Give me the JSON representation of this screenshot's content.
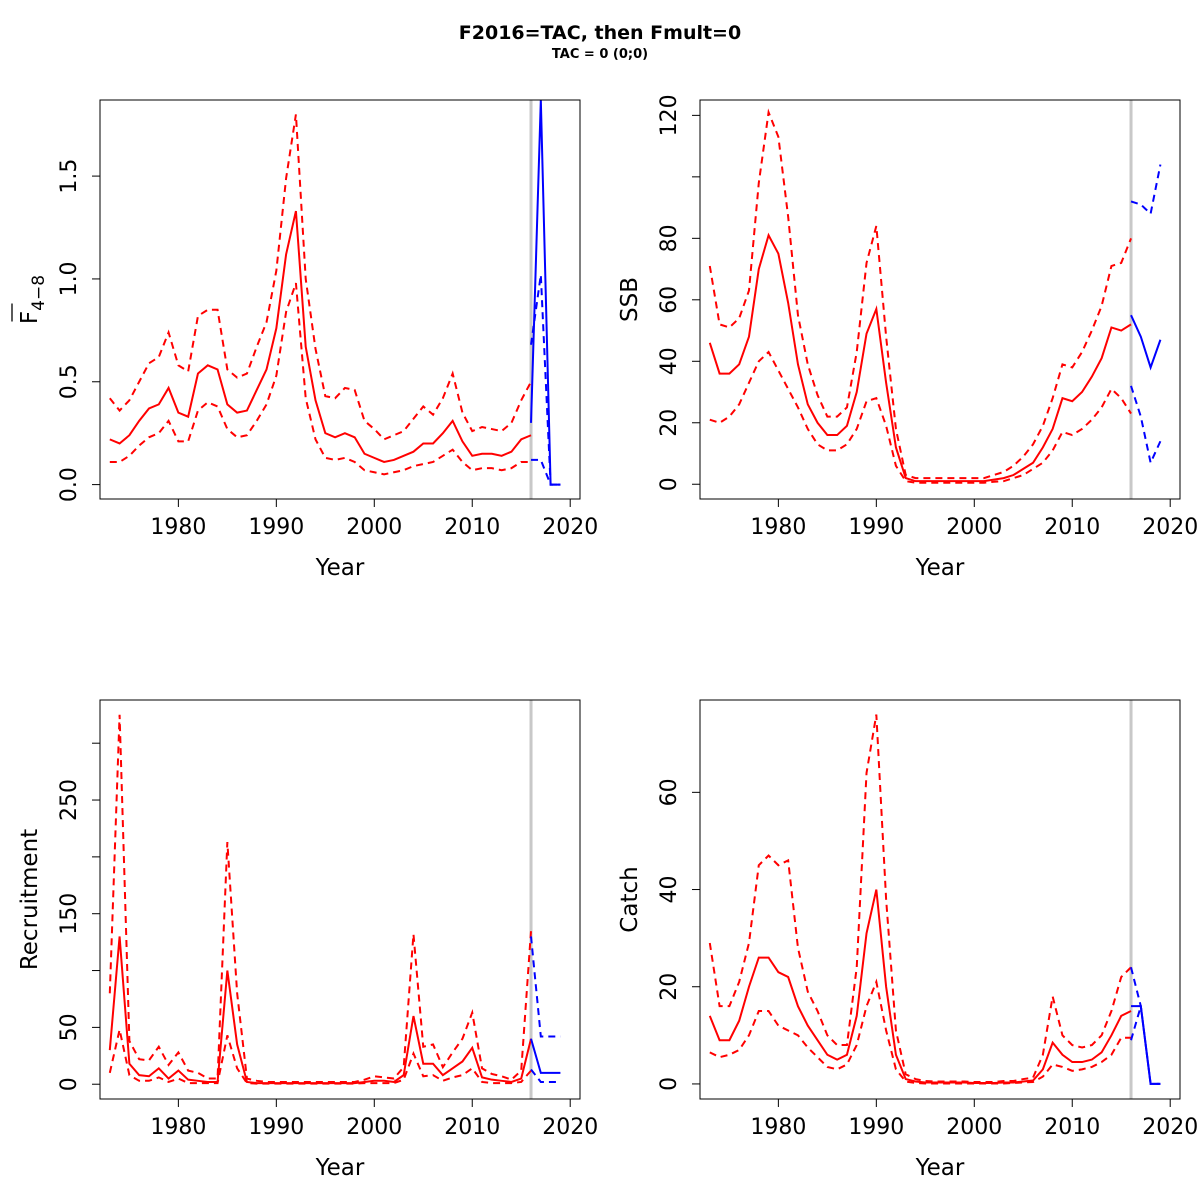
{
  "title": "F2016=TAC, then Fmult=0",
  "subtitle": "TAC = 0 (0;0)",
  "colors": {
    "historic": "#ff0000",
    "forecast": "#0000ff",
    "divider": "#c8c8c8"
  },
  "chart_data": [
    {
      "id": "fbar",
      "type": "line",
      "xlabel": "Year",
      "ylabel": "F",
      "ylabel_subscript": "4−8",
      "xlim": [
        1972,
        2021
      ],
      "ylim": [
        -0.07,
        1.87
      ],
      "xticks": [
        1980,
        1990,
        2000,
        2010,
        2020
      ],
      "yticks": [
        0.0,
        0.5,
        1.0,
        1.5
      ],
      "ytick_labels": [
        "0.0",
        "0.5",
        "1.0",
        "1.5"
      ],
      "divider_x": 2016,
      "historic": {
        "x": [
          1973,
          1974,
          1975,
          1976,
          1977,
          1978,
          1979,
          1980,
          1981,
          1982,
          1983,
          1984,
          1985,
          1986,
          1987,
          1988,
          1989,
          1990,
          1991,
          1992,
          1993,
          1994,
          1995,
          1996,
          1997,
          1998,
          1999,
          2000,
          2001,
          2002,
          2003,
          2004,
          2005,
          2006,
          2007,
          2008,
          2009,
          2010,
          2011,
          2012,
          2013,
          2014,
          2015,
          2016
        ],
        "mid": [
          0.22,
          0.2,
          0.24,
          0.31,
          0.37,
          0.39,
          0.47,
          0.35,
          0.33,
          0.54,
          0.58,
          0.56,
          0.39,
          0.35,
          0.36,
          0.46,
          0.56,
          0.76,
          1.12,
          1.33,
          0.67,
          0.41,
          0.25,
          0.23,
          0.25,
          0.23,
          0.15,
          0.13,
          0.11,
          0.12,
          0.14,
          0.16,
          0.2,
          0.2,
          0.25,
          0.31,
          0.21,
          0.14,
          0.15,
          0.15,
          0.14,
          0.16,
          0.22,
          0.24
        ],
        "upper": [
          0.42,
          0.36,
          0.41,
          0.5,
          0.59,
          0.62,
          0.74,
          0.58,
          0.55,
          0.82,
          0.85,
          0.85,
          0.56,
          0.52,
          0.54,
          0.67,
          0.79,
          1.04,
          1.49,
          1.8,
          1.0,
          0.66,
          0.43,
          0.42,
          0.47,
          0.46,
          0.31,
          0.27,
          0.22,
          0.24,
          0.26,
          0.32,
          0.38,
          0.34,
          0.42,
          0.54,
          0.35,
          0.26,
          0.28,
          0.27,
          0.26,
          0.3,
          0.41,
          0.5
        ],
        "lower": [
          0.11,
          0.11,
          0.14,
          0.19,
          0.23,
          0.25,
          0.31,
          0.21,
          0.21,
          0.36,
          0.4,
          0.38,
          0.27,
          0.23,
          0.24,
          0.31,
          0.39,
          0.53,
          0.84,
          0.98,
          0.42,
          0.22,
          0.13,
          0.12,
          0.13,
          0.11,
          0.07,
          0.06,
          0.05,
          0.06,
          0.07,
          0.09,
          0.1,
          0.11,
          0.14,
          0.17,
          0.11,
          0.07,
          0.08,
          0.08,
          0.07,
          0.08,
          0.11,
          0.11
        ]
      },
      "forecast": {
        "x": [
          2016,
          2017,
          2018,
          2019
        ],
        "mid": [
          0.3,
          1.87,
          0.0,
          0.0
        ],
        "upper": [
          0.68,
          1.02,
          0.0,
          0.0
        ],
        "lower": [
          0.12,
          0.12,
          0.0,
          0.0
        ]
      }
    },
    {
      "id": "ssb",
      "type": "line",
      "xlabel": "Year",
      "ylabel": "SSB",
      "xlim": [
        1972,
        2021
      ],
      "ylim": [
        -4.8,
        125
      ],
      "xticks": [
        1980,
        1990,
        2000,
        2010,
        2020
      ],
      "yticks": [
        0,
        20,
        40,
        60,
        80,
        100,
        120
      ],
      "ytick_labels": [
        "0",
        "20",
        "40",
        "60",
        "80",
        "",
        "120"
      ],
      "divider_x": 2016,
      "historic": {
        "x": [
          1973,
          1974,
          1975,
          1976,
          1977,
          1978,
          1979,
          1980,
          1981,
          1982,
          1983,
          1984,
          1985,
          1986,
          1987,
          1988,
          1989,
          1990,
          1991,
          1992,
          1993,
          1994,
          1995,
          1996,
          1997,
          1998,
          1999,
          2000,
          2001,
          2002,
          2003,
          2004,
          2005,
          2006,
          2007,
          2008,
          2009,
          2010,
          2011,
          2012,
          2013,
          2014,
          2015,
          2016
        ],
        "mid": [
          46,
          36,
          36,
          39,
          48,
          70,
          81,
          75,
          59,
          39,
          26,
          20,
          16,
          16,
          19,
          30,
          49,
          57,
          33,
          12,
          2,
          1,
          1,
          1,
          1,
          1,
          1,
          1,
          1,
          1.5,
          2,
          3,
          5,
          7,
          12,
          18,
          28,
          27,
          30,
          35,
          41,
          51,
          50,
          52
        ],
        "upper": [
          71,
          52,
          51,
          54,
          63,
          98,
          121,
          113,
          87,
          55,
          39,
          29,
          22,
          22,
          25,
          43,
          72,
          84,
          48,
          18,
          3,
          2,
          2,
          2,
          2,
          2,
          2,
          2,
          2,
          3,
          4,
          6,
          9,
          13,
          19,
          28,
          39,
          38,
          43,
          50,
          58,
          71,
          72,
          80
        ],
        "lower": [
          21,
          20,
          22,
          26,
          33,
          40,
          43,
          37,
          31,
          25,
          18,
          13,
          11,
          11,
          13,
          18,
          27,
          28,
          19,
          6,
          1,
          0.5,
          0.5,
          0.5,
          0.5,
          0.5,
          0.5,
          0.5,
          0.5,
          0.8,
          1,
          2,
          3,
          5,
          7,
          11,
          17,
          16,
          18,
          21,
          25,
          31,
          28,
          23
        ]
      },
      "forecast": {
        "x": [
          2016,
          2017,
          2018,
          2019
        ],
        "mid": [
          55,
          48,
          38,
          47
        ],
        "upper": [
          92,
          91,
          88,
          104
        ],
        "lower": [
          32,
          22,
          7,
          14
        ]
      }
    },
    {
      "id": "recruitment",
      "type": "line",
      "xlabel": "Year",
      "ylabel": "Recruitment",
      "xlim": [
        1972,
        2021
      ],
      "ylim": [
        -13,
        338
      ],
      "xticks": [
        1980,
        1990,
        2000,
        2010,
        2020
      ],
      "yticks": [
        0,
        50,
        100,
        150,
        200,
        250,
        300
      ],
      "ytick_labels": [
        "0",
        "50",
        "",
        "150",
        "",
        "250",
        ""
      ],
      "divider_x": 2016,
      "historic": {
        "x": [
          1973,
          1974,
          1975,
          1976,
          1977,
          1978,
          1979,
          1980,
          1981,
          1982,
          1983,
          1984,
          1985,
          1986,
          1987,
          1988,
          1989,
          1990,
          1991,
          1992,
          1993,
          1994,
          1995,
          1996,
          1997,
          1998,
          1999,
          2000,
          2001,
          2002,
          2003,
          2004,
          2005,
          2006,
          2007,
          2008,
          2009,
          2010,
          2011,
          2012,
          2013,
          2014,
          2015,
          2016
        ],
        "mid": [
          30,
          130,
          18,
          8,
          7,
          14,
          5,
          12,
          4,
          3,
          2,
          2,
          100,
          35,
          2,
          1,
          1,
          1,
          1,
          1,
          1,
          1,
          1,
          1,
          1,
          1,
          2,
          3,
          3,
          2,
          8,
          60,
          18,
          18,
          8,
          14,
          20,
          32,
          6,
          4,
          3,
          2,
          5,
          40
        ],
        "upper": [
          80,
          325,
          38,
          22,
          21,
          33,
          17,
          28,
          12,
          10,
          5,
          5,
          213,
          80,
          5,
          3,
          2,
          2,
          2,
          2,
          2,
          2,
          2,
          2,
          2,
          2,
          4,
          7,
          6,
          5,
          15,
          132,
          33,
          35,
          15,
          28,
          40,
          63,
          14,
          9,
          7,
          4,
          12,
          135
        ],
        "lower": [
          10,
          48,
          8,
          3,
          3,
          6,
          2,
          5,
          1,
          1,
          1,
          1,
          43,
          14,
          1,
          0.5,
          0.5,
          0.5,
          0.5,
          0.5,
          0.5,
          0.5,
          0.5,
          0.5,
          0.5,
          0.5,
          1,
          1,
          1,
          1,
          4,
          27,
          7,
          8,
          3,
          6,
          8,
          14,
          2,
          1,
          1,
          1,
          2,
          12
        ]
      },
      "forecast": {
        "x": [
          2016,
          2017,
          2018,
          2019
        ],
        "mid": [
          40,
          10,
          10,
          10
        ],
        "upper": [
          130,
          42,
          42,
          42
        ],
        "lower": [
          13,
          2,
          2,
          2
        ]
      }
    },
    {
      "id": "catch",
      "type": "line",
      "xlabel": "Year",
      "ylabel": "Catch",
      "xlim": [
        1972,
        2021
      ],
      "ylim": [
        -3.1,
        79
      ],
      "xticks": [
        1980,
        1990,
        2000,
        2010,
        2020
      ],
      "yticks": [
        0,
        20,
        40,
        60
      ],
      "ytick_labels": [
        "0",
        "20",
        "40",
        "60"
      ],
      "divider_x": 2016,
      "historic": {
        "x": [
          1973,
          1974,
          1975,
          1976,
          1977,
          1978,
          1979,
          1980,
          1981,
          1982,
          1983,
          1984,
          1985,
          1986,
          1987,
          1988,
          1989,
          1990,
          1991,
          1992,
          1993,
          1994,
          1995,
          1996,
          1997,
          1998,
          1999,
          2000,
          2001,
          2002,
          2003,
          2004,
          2005,
          2006,
          2007,
          2008,
          2009,
          2010,
          2011,
          2012,
          2013,
          2014,
          2015,
          2016
        ],
        "mid": [
          14,
          9,
          9,
          13,
          20,
          26,
          26,
          23,
          22,
          16,
          12,
          9,
          6,
          5,
          6,
          14,
          31,
          40,
          20,
          6,
          1,
          0.5,
          0.3,
          0.3,
          0.3,
          0.3,
          0.3,
          0.2,
          0.2,
          0.2,
          0.3,
          0.3,
          0.5,
          0.7,
          3,
          8.5,
          6,
          4.5,
          4.5,
          5,
          6.5,
          10,
          14,
          15
        ],
        "upper": [
          29,
          16,
          16,
          21,
          29,
          45,
          47,
          45,
          46,
          28,
          19,
          15,
          10,
          8,
          8,
          24,
          64,
          76,
          38,
          11,
          2,
          1,
          0.6,
          0.5,
          0.5,
          0.5,
          0.5,
          0.4,
          0.4,
          0.4,
          0.6,
          0.6,
          1,
          1.3,
          6,
          18,
          10,
          8,
          7.5,
          8,
          10,
          15,
          22,
          24
        ],
        "lower": [
          6.5,
          5.5,
          6,
          7,
          10,
          15,
          15,
          12,
          11,
          10,
          7.5,
          5.5,
          3.5,
          3,
          4,
          8,
          16,
          21,
          11,
          3,
          0.5,
          0.2,
          0.1,
          0.1,
          0.1,
          0.1,
          0.1,
          0.1,
          0.1,
          0.1,
          0.1,
          0.2,
          0.3,
          0.4,
          1.5,
          4,
          3.5,
          2.7,
          3,
          3.5,
          4.5,
          6,
          9.5,
          9.5
        ]
      },
      "forecast": {
        "x": [
          2016,
          2017,
          2018,
          2019
        ],
        "mid": [
          16,
          16,
          0,
          0
        ],
        "upper": [
          24,
          16,
          0,
          0
        ],
        "lower": [
          9,
          16,
          0,
          0
        ]
      }
    }
  ]
}
